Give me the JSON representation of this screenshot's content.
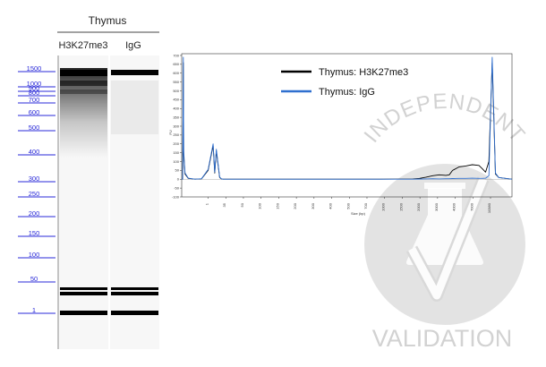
{
  "gel": {
    "tissue": "Thymus",
    "lanes": [
      "H3K27me3",
      "IgG"
    ],
    "ladder_labels": [
      "1500",
      "1000",
      "900",
      "800",
      "700",
      "600",
      "500",
      "400",
      "300",
      "250",
      "200",
      "150",
      "100",
      "50",
      "1"
    ],
    "ladder_color": "#2a2ad8"
  },
  "watermark": {
    "top": "INDEPENDENT",
    "bottom": "VALIDATION",
    "color": "#d2d2d2"
  },
  "chart_data": {
    "type": "line",
    "xlabel": "Size (bp)",
    "ylabel": "FU",
    "y_ticks": [
      "-100",
      "-50",
      "0",
      "50",
      "100",
      "150",
      "200",
      "250",
      "300",
      "350",
      "400",
      "450",
      "500",
      "550",
      "600",
      "650",
      "700"
    ],
    "x_ticks": [
      "1",
      "35",
      "50",
      "100",
      "150",
      "200",
      "300",
      "400",
      "500",
      "700",
      "1000",
      "1500",
      "2000",
      "3000",
      "4000",
      "7000",
      "10380"
    ],
    "ylim": [
      -100,
      710
    ],
    "series": [
      {
        "name": "Thymus: H3K27me3",
        "color": "#000000",
        "x": [
          0,
          0.3,
          0.5,
          0.6,
          1,
          2,
          4,
          6,
          8,
          9.5,
          10,
          10.5,
          11.5,
          12,
          12.5,
          14,
          20,
          40,
          60,
          70,
          72,
          74,
          76,
          78,
          80,
          81,
          82,
          84,
          86,
          88,
          90,
          91,
          92,
          93,
          94,
          95,
          96,
          98,
          100
        ],
        "y": [
          0,
          0,
          660,
          140,
          30,
          5,
          0,
          2,
          50,
          190,
          35,
          160,
          10,
          2,
          0,
          0,
          0,
          0,
          0,
          2,
          5,
          12,
          20,
          25,
          22,
          25,
          50,
          70,
          75,
          82,
          78,
          60,
          40,
          100,
          660,
          30,
          10,
          5,
          0
        ]
      },
      {
        "name": "Thymus: IgG",
        "color": "#2f6fcf",
        "x": [
          0,
          0.3,
          0.5,
          0.6,
          1,
          2,
          4,
          6,
          8,
          9.5,
          10,
          10.5,
          11.5,
          12,
          12.5,
          14,
          20,
          40,
          60,
          70,
          72,
          74,
          76,
          78,
          80,
          81,
          82,
          84,
          86,
          88,
          90,
          91,
          92,
          93,
          94,
          95,
          96,
          98,
          100
        ],
        "y": [
          0,
          0,
          690,
          160,
          35,
          6,
          0,
          3,
          55,
          200,
          40,
          170,
          12,
          3,
          0,
          0,
          0,
          0,
          0,
          0,
          1,
          2,
          3,
          2,
          3,
          3,
          4,
          5,
          5,
          6,
          5,
          5,
          6,
          20,
          690,
          35,
          10,
          5,
          0
        ]
      }
    ]
  }
}
